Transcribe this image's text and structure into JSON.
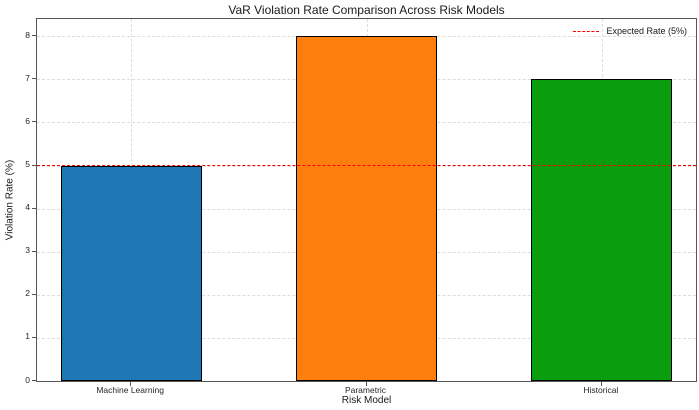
{
  "title": "VaR Violation Rate Comparison Across Risk Models",
  "axes": {
    "xlabel": "Risk Model",
    "ylabel": "Violation Rate (%)"
  },
  "legend": {
    "label": "Expected Rate (5%)"
  },
  "chart_data": {
    "type": "bar",
    "title": "VaR Violation Rate Comparison Across Risk Models",
    "categories": [
      "Machine Learning",
      "Parametric",
      "Historical"
    ],
    "values": [
      5,
      8,
      7
    ],
    "bar_colors": [
      "#1f77b4",
      "#ff7f0e",
      "#0a9e0f"
    ],
    "bar_edge_color": "#000000",
    "xlabel": "Risk Model",
    "ylabel": "Violation Rate (%)",
    "ylim": [
      0,
      8.4
    ],
    "yticks": [
      0,
      1,
      2,
      3,
      4,
      5,
      6,
      7,
      8
    ],
    "grid": "both, light dashed",
    "reference_line": {
      "value": 5,
      "color": "#ff0000",
      "linestyle": "dashed",
      "label": "Expected Rate (5%)"
    },
    "legend_position": "upper right"
  }
}
